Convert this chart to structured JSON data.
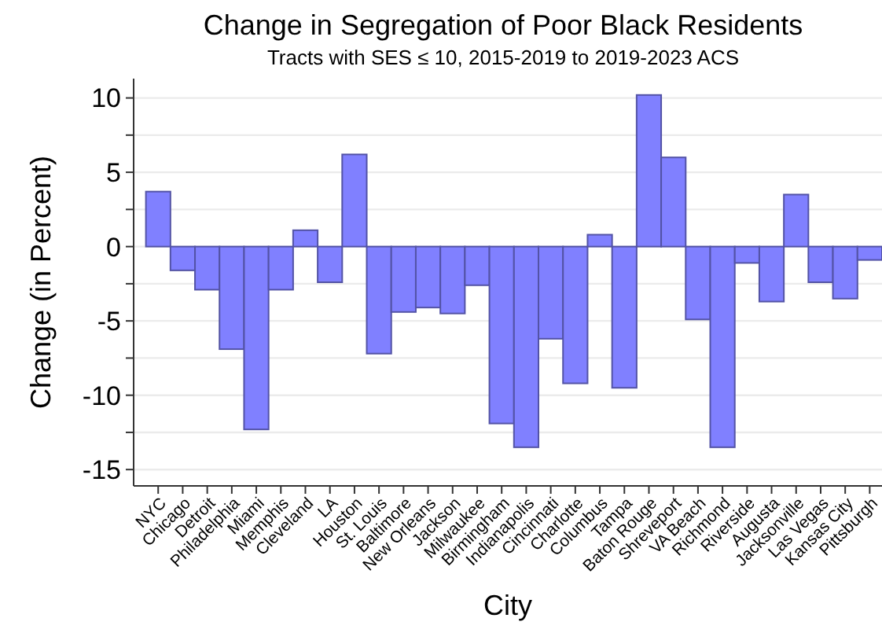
{
  "chart_data": {
    "type": "bar",
    "title": "Change in Segregation of Poor Black Residents",
    "subtitle": "Tracts with SES ≤ 10, 2015-2019 to 2019-2023 ACS",
    "xlabel": "City",
    "ylabel": "Change (in Percent)",
    "categories": [
      "NYC",
      "Chicago",
      "Detroit",
      "Philadelphia",
      "Miami",
      "Memphis",
      "Cleveland",
      "LA",
      "Houston",
      "St. Louis",
      "Baltimore",
      "New Orleans",
      "Jackson",
      "Milwaukee",
      "Birmingham",
      "Indianapolis",
      "Cincinnati",
      "Charlotte",
      "Columbus",
      "Tampa",
      "Baton Rouge",
      "Shreveport",
      "VA Beach",
      "Richmond",
      "Riverside",
      "Augusta",
      "Jacksonville",
      "Las Vegas",
      "Kansas City",
      "Pittsburgh"
    ],
    "values": [
      3.7,
      -1.6,
      -2.9,
      -6.9,
      -12.3,
      -2.9,
      1.1,
      -2.4,
      6.2,
      -7.2,
      -4.4,
      -4.1,
      -4.5,
      -2.6,
      -11.9,
      -13.5,
      -6.2,
      -9.2,
      0.8,
      -9.5,
      10.2,
      6.0,
      -4.9,
      -13.5,
      -1.1,
      -3.7,
      3.5,
      -2.4,
      -3.5,
      -0.9
    ],
    "color": "#8080ff",
    "ylim": [
      -16.1,
      11.3
    ],
    "yticks": [
      -15,
      {
        "value": -12.5,
        "label": null
      },
      -10,
      {
        "value": -7.5,
        "label": null
      },
      -5,
      {
        "value": -2.5,
        "label": null
      },
      0,
      {
        "value": 2.5,
        "label": null
      },
      5,
      {
        "value": 7.5,
        "label": null
      },
      10
    ],
    "grid": "y"
  }
}
